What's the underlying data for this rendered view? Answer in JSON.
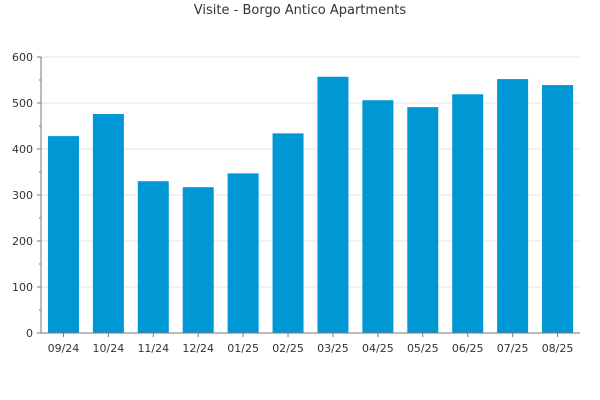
{
  "chart_data": {
    "type": "bar",
    "title": "Visite - Borgo Antico Apartments",
    "xlabel": "",
    "ylabel": "",
    "categories": [
      "09/24",
      "10/24",
      "11/24",
      "12/24",
      "01/25",
      "02/25",
      "03/25",
      "04/25",
      "05/25",
      "06/25",
      "07/25",
      "08/25"
    ],
    "series": [
      {
        "values": [
          428,
          476,
          330,
          317,
          347,
          434,
          557,
          506,
          491,
          519,
          552,
          539
        ]
      }
    ],
    "ylim": [
      0,
      600
    ],
    "yticks": [
      0,
      100,
      200,
      300,
      400,
      500,
      600
    ],
    "grid": true,
    "legend": "none",
    "colors": {
      "bar": "#0098d4",
      "grid": "#e6e6e6",
      "axis": "#777777"
    }
  }
}
